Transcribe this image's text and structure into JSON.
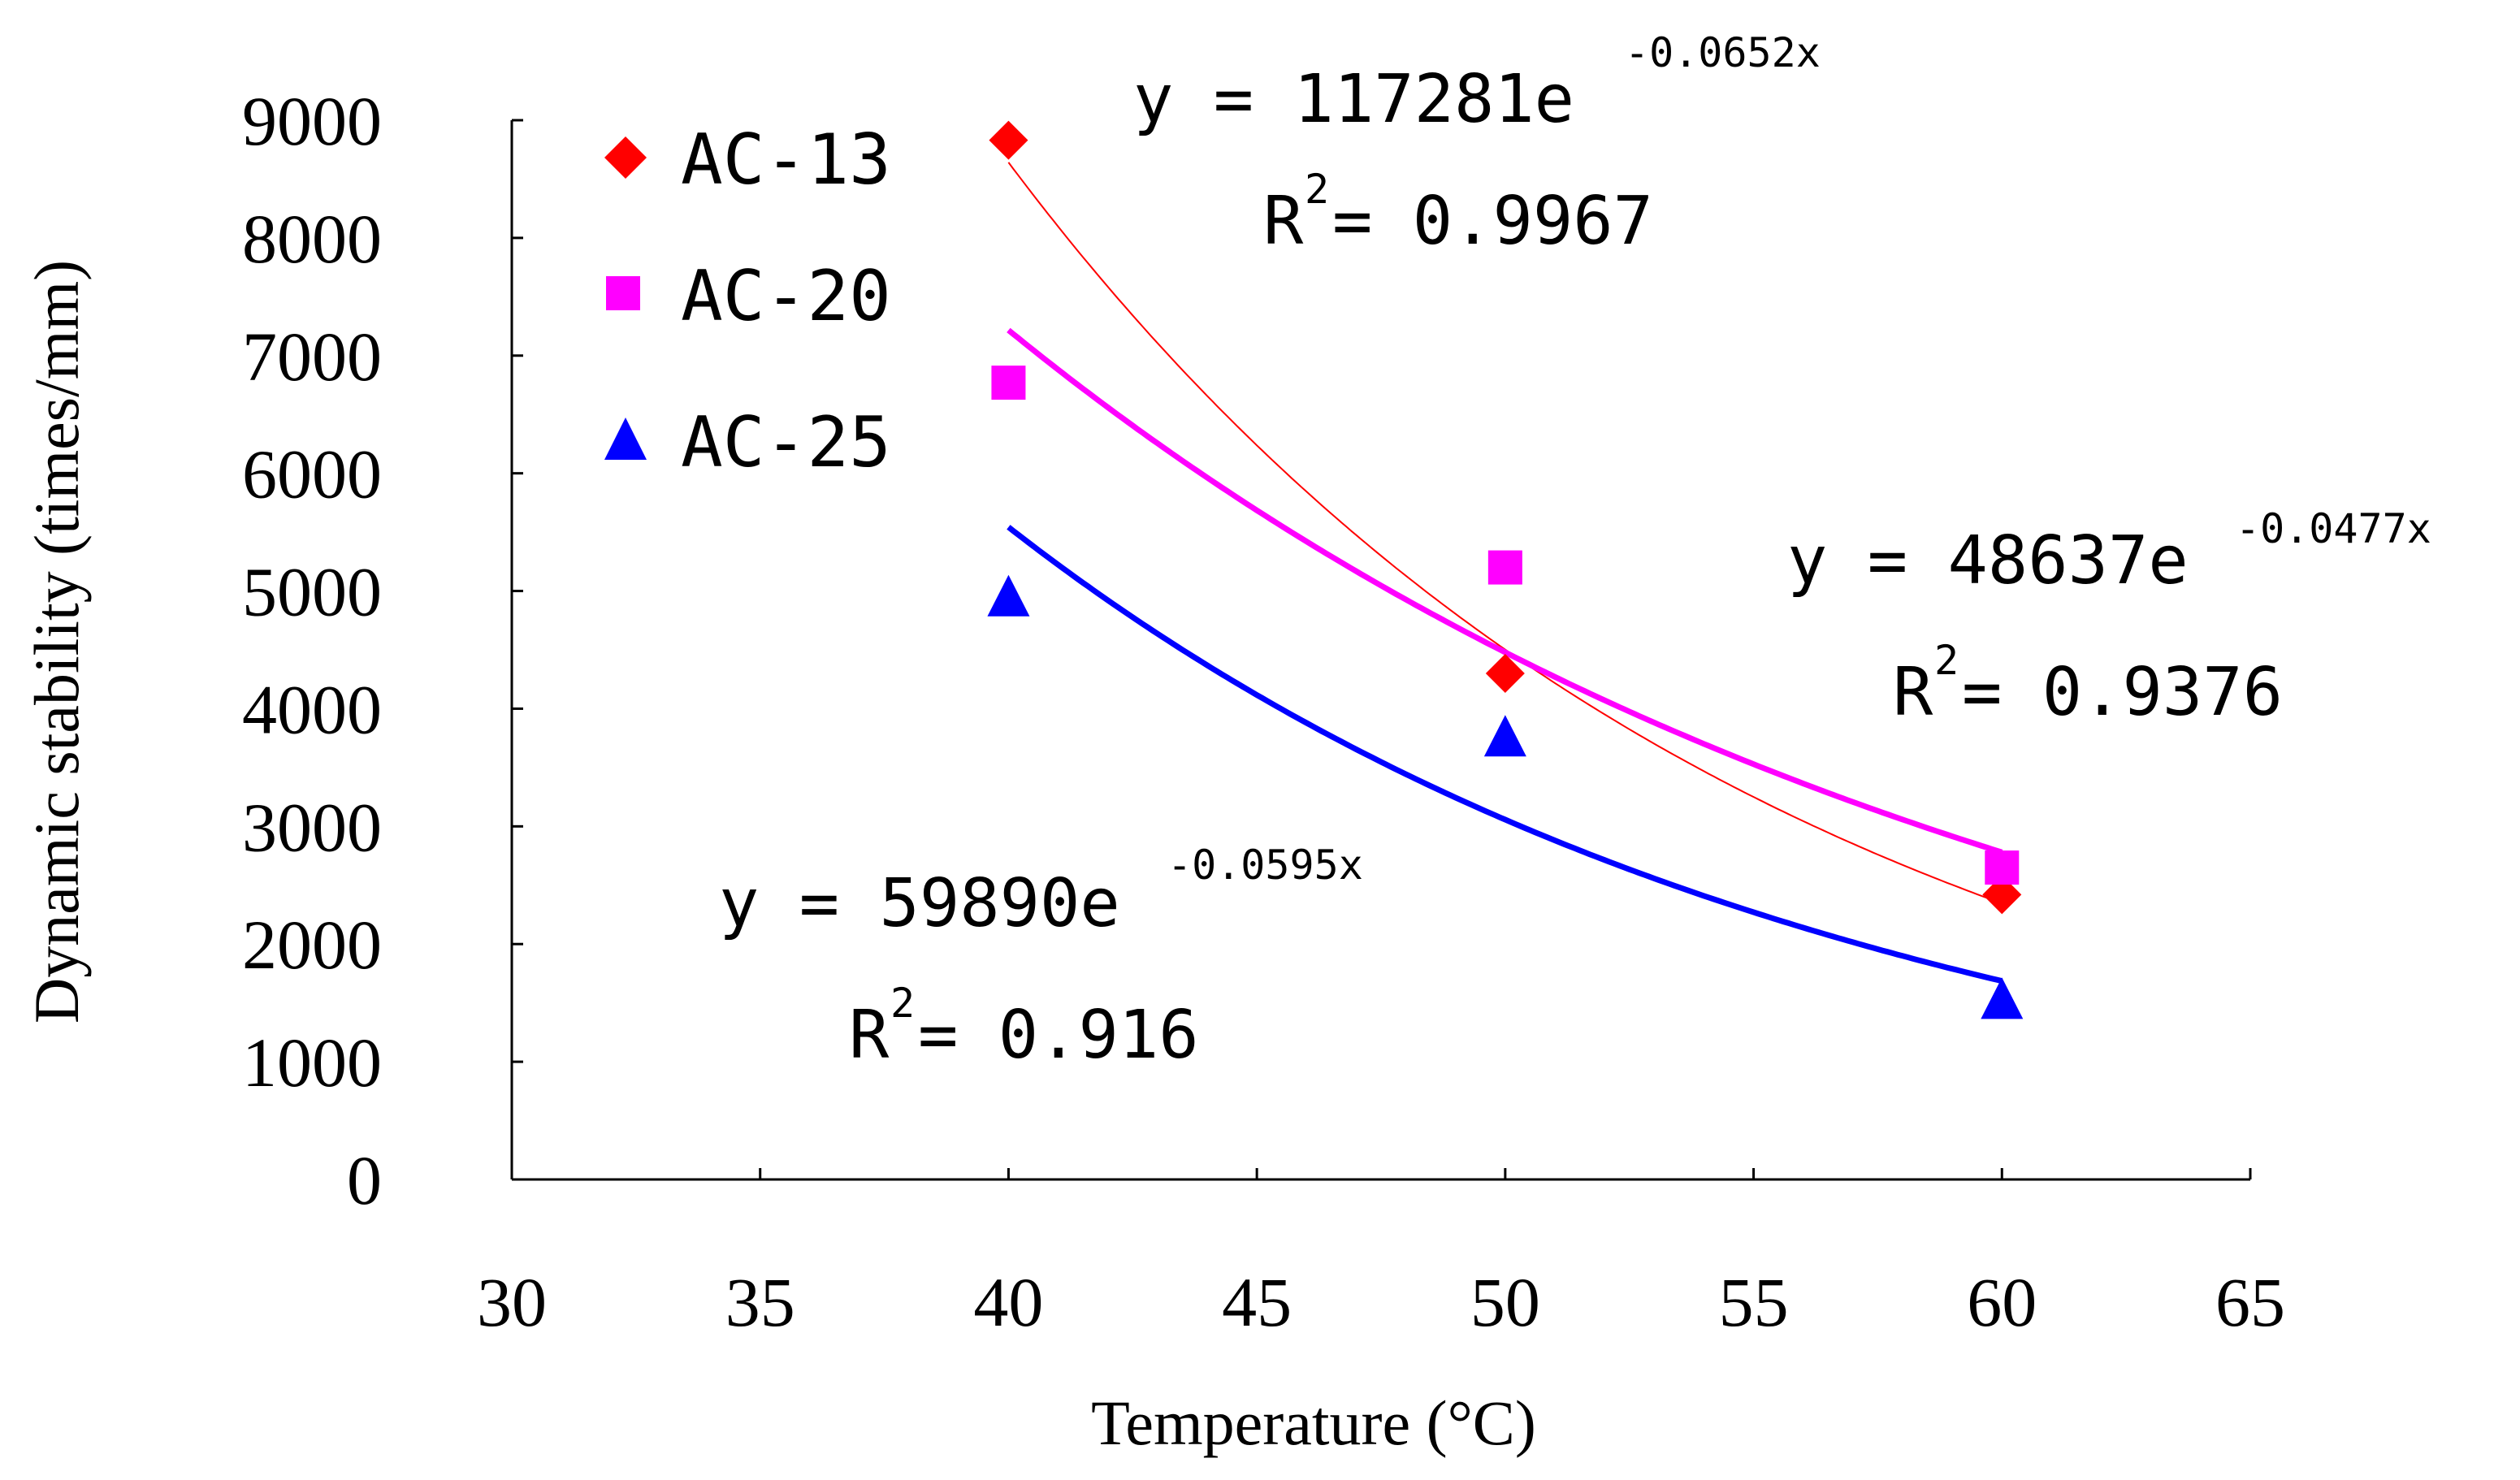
{
  "chart_data": {
    "type": "scatter",
    "title": "",
    "xlabel": "Temperature (°C)",
    "ylabel": "Dynamic stability (times/mm)",
    "xlim": [
      30,
      65
    ],
    "ylim": [
      0,
      9000
    ],
    "xticks": [
      30,
      35,
      40,
      45,
      50,
      55,
      60,
      65
    ],
    "yticks": [
      0,
      1000,
      2000,
      3000,
      4000,
      5000,
      6000,
      7000,
      8000,
      9000
    ],
    "grid": false,
    "legend_position": "top-left",
    "series": [
      {
        "name": "AC-13",
        "marker": "diamond",
        "color": "#ff0000",
        "x": [
          40,
          50,
          60
        ],
        "y": [
          8830,
          4300,
          2420
        ],
        "trendline": {
          "type": "exponential",
          "a": 117281,
          "b": -0.0652,
          "x_range": [
            40,
            60
          ],
          "line_width": "thin",
          "equation_parts": [
            "y = 117281e",
            "-0.0652x"
          ],
          "r2_parts": [
            "R",
            "2",
            " = 0.9967"
          ]
        }
      },
      {
        "name": "AC-20",
        "marker": "square",
        "color": "#ff00ff",
        "x": [
          40,
          50,
          60
        ],
        "y": [
          6770,
          5200,
          2650
        ],
        "trendline": {
          "type": "exponential",
          "a": 48637,
          "b": -0.0477,
          "x_range": [
            40,
            60
          ],
          "line_width": "thick",
          "equation_parts": [
            "y = 48637e",
            "-0.0477x"
          ],
          "r2_parts": [
            "R",
            "2",
            " = 0.9376"
          ]
        }
      },
      {
        "name": "AC-25",
        "marker": "triangle",
        "color": "#0000ff",
        "x": [
          40,
          50,
          60
        ],
        "y": [
          4950,
          3760,
          1530
        ],
        "trendline": {
          "type": "exponential",
          "a": 59890,
          "b": -0.0595,
          "x_range": [
            40,
            60
          ],
          "line_width": "thick",
          "equation_parts": [
            "y = 59890e",
            "-0.0595x"
          ],
          "r2_parts": [
            "R",
            "2",
            " = 0.916"
          ]
        }
      }
    ]
  }
}
